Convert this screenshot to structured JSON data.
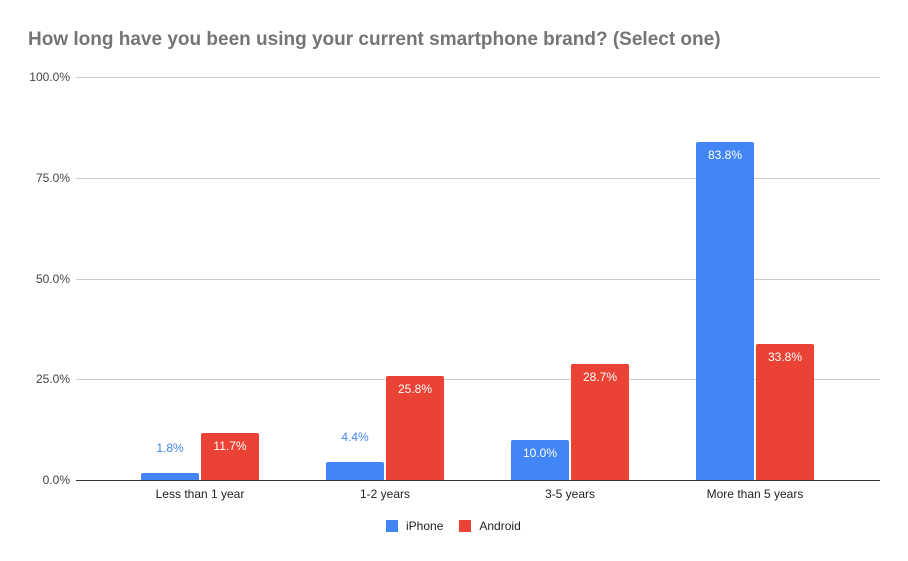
{
  "chart_data": {
    "type": "bar",
    "title": "How long have you been using your current smartphone brand? (Select one)",
    "xlabel": "",
    "ylabel": "",
    "ylim": [
      0,
      100
    ],
    "yticks": [
      "0.0%",
      "25.0%",
      "50.0%",
      "75.0%",
      "100.0%"
    ],
    "grid": true,
    "legend_position": "bottom",
    "categories": [
      "Less than 1 year",
      "1-2 years",
      "3-5 years",
      "More than 5 years"
    ],
    "series": [
      {
        "name": "iPhone",
        "color": "#4285f4",
        "values": [
          1.8,
          4.4,
          10.0,
          83.8
        ],
        "labels": [
          "1.8%",
          "4.4%",
          "10.0%",
          "83.8%"
        ]
      },
      {
        "name": "Android",
        "color": "#ea4335",
        "values": [
          11.7,
          25.8,
          28.7,
          33.8
        ],
        "labels": [
          "11.7%",
          "25.8%",
          "28.7%",
          "33.8%"
        ]
      }
    ]
  }
}
